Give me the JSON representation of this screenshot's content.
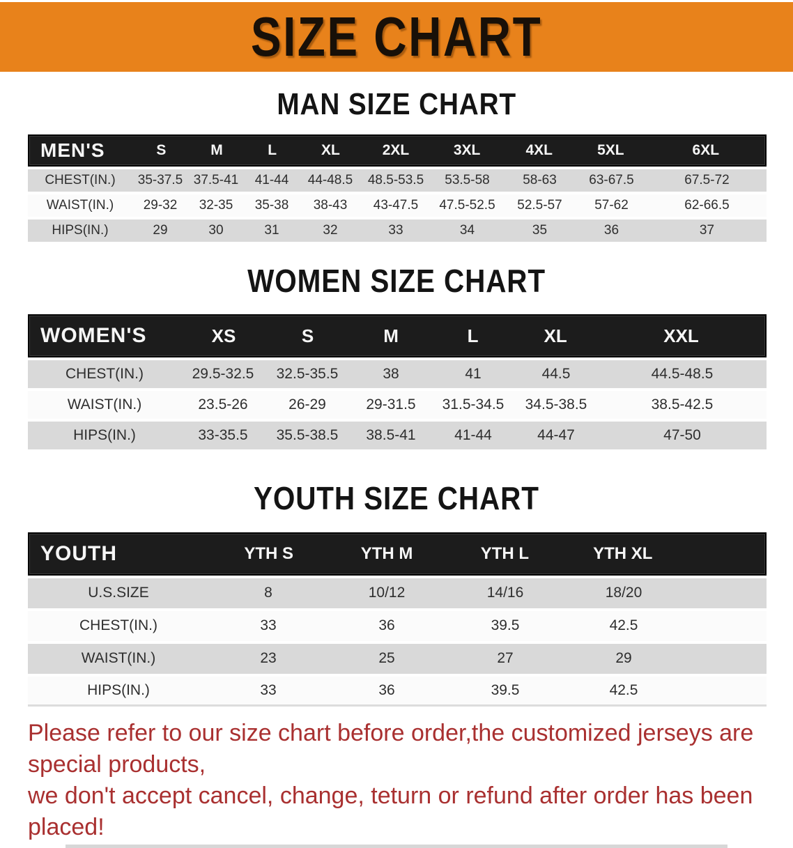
{
  "banner": {
    "title": "SIZE CHART"
  },
  "men": {
    "heading": "MAN SIZE CHART",
    "header": {
      "label": "MEN'S",
      "sizes": [
        "S",
        "M",
        "L",
        "XL",
        "2XL",
        "3XL",
        "4XL",
        "5XL",
        "6XL"
      ]
    },
    "rows": [
      {
        "label": "CHEST(IN.)",
        "values": [
          "35-37.5",
          "37.5-41",
          "41-44",
          "44-48.5",
          "48.5-53.5",
          "53.5-58",
          "58-63",
          "63-67.5",
          "67.5-72"
        ]
      },
      {
        "label": "WAIST(IN.)",
        "values": [
          "29-32",
          "32-35",
          "35-38",
          "38-43",
          "43-47.5",
          "47.5-52.5",
          "52.5-57",
          "57-62",
          "62-66.5"
        ]
      },
      {
        "label": "HIPS(IN.)",
        "values": [
          "29",
          "30",
          "31",
          "32",
          "33",
          "34",
          "35",
          "36",
          "37"
        ]
      }
    ]
  },
  "women": {
    "heading": "WOMEN SIZE CHART",
    "header": {
      "label": "WOMEN'S",
      "sizes": [
        "XS",
        "S",
        "M",
        "L",
        "XL",
        "XXL"
      ]
    },
    "rows": [
      {
        "label": "CHEST(IN.)",
        "values": [
          "29.5-32.5",
          "32.5-35.5",
          "38",
          "41",
          "44.5",
          "44.5-48.5"
        ]
      },
      {
        "label": "WAIST(IN.)",
        "values": [
          "23.5-26",
          "26-29",
          "29-31.5",
          "31.5-34.5",
          "34.5-38.5",
          "38.5-42.5"
        ]
      },
      {
        "label": "HIPS(IN.)",
        "values": [
          "33-35.5",
          "35.5-38.5",
          "38.5-41",
          "41-44",
          "44-47",
          "47-50"
        ]
      }
    ]
  },
  "youth": {
    "heading": "YOUTH SIZE CHART",
    "header": {
      "label": "YOUTH",
      "sizes": [
        "YTH S",
        "YTH M",
        "YTH L",
        "YTH XL"
      ]
    },
    "rows": [
      {
        "label": "U.S.SIZE",
        "values": [
          "8",
          "10/12",
          "14/16",
          "18/20"
        ]
      },
      {
        "label": "CHEST(IN.)",
        "values": [
          "33",
          "36",
          "39.5",
          "42.5"
        ]
      },
      {
        "label": "WAIST(IN.)",
        "values": [
          "23",
          "25",
          "27",
          "29"
        ]
      },
      {
        "label": "HIPS(IN.)",
        "values": [
          "33",
          "36",
          "39.5",
          "42.5"
        ]
      }
    ]
  },
  "disclaimer": {
    "line1": "Please refer to our size chart before order,the customized jerseys are special products,",
    "line2": "we don't accept cancel, change, teturn or refund after order has been placed!"
  },
  "colors": {
    "banner_orange": "#e8821b",
    "header_bar_black": "#1c1c1c",
    "row_gray": "#d9d9d9",
    "row_white": "#fbfbfb",
    "disclaimer_red": "#a93030"
  }
}
